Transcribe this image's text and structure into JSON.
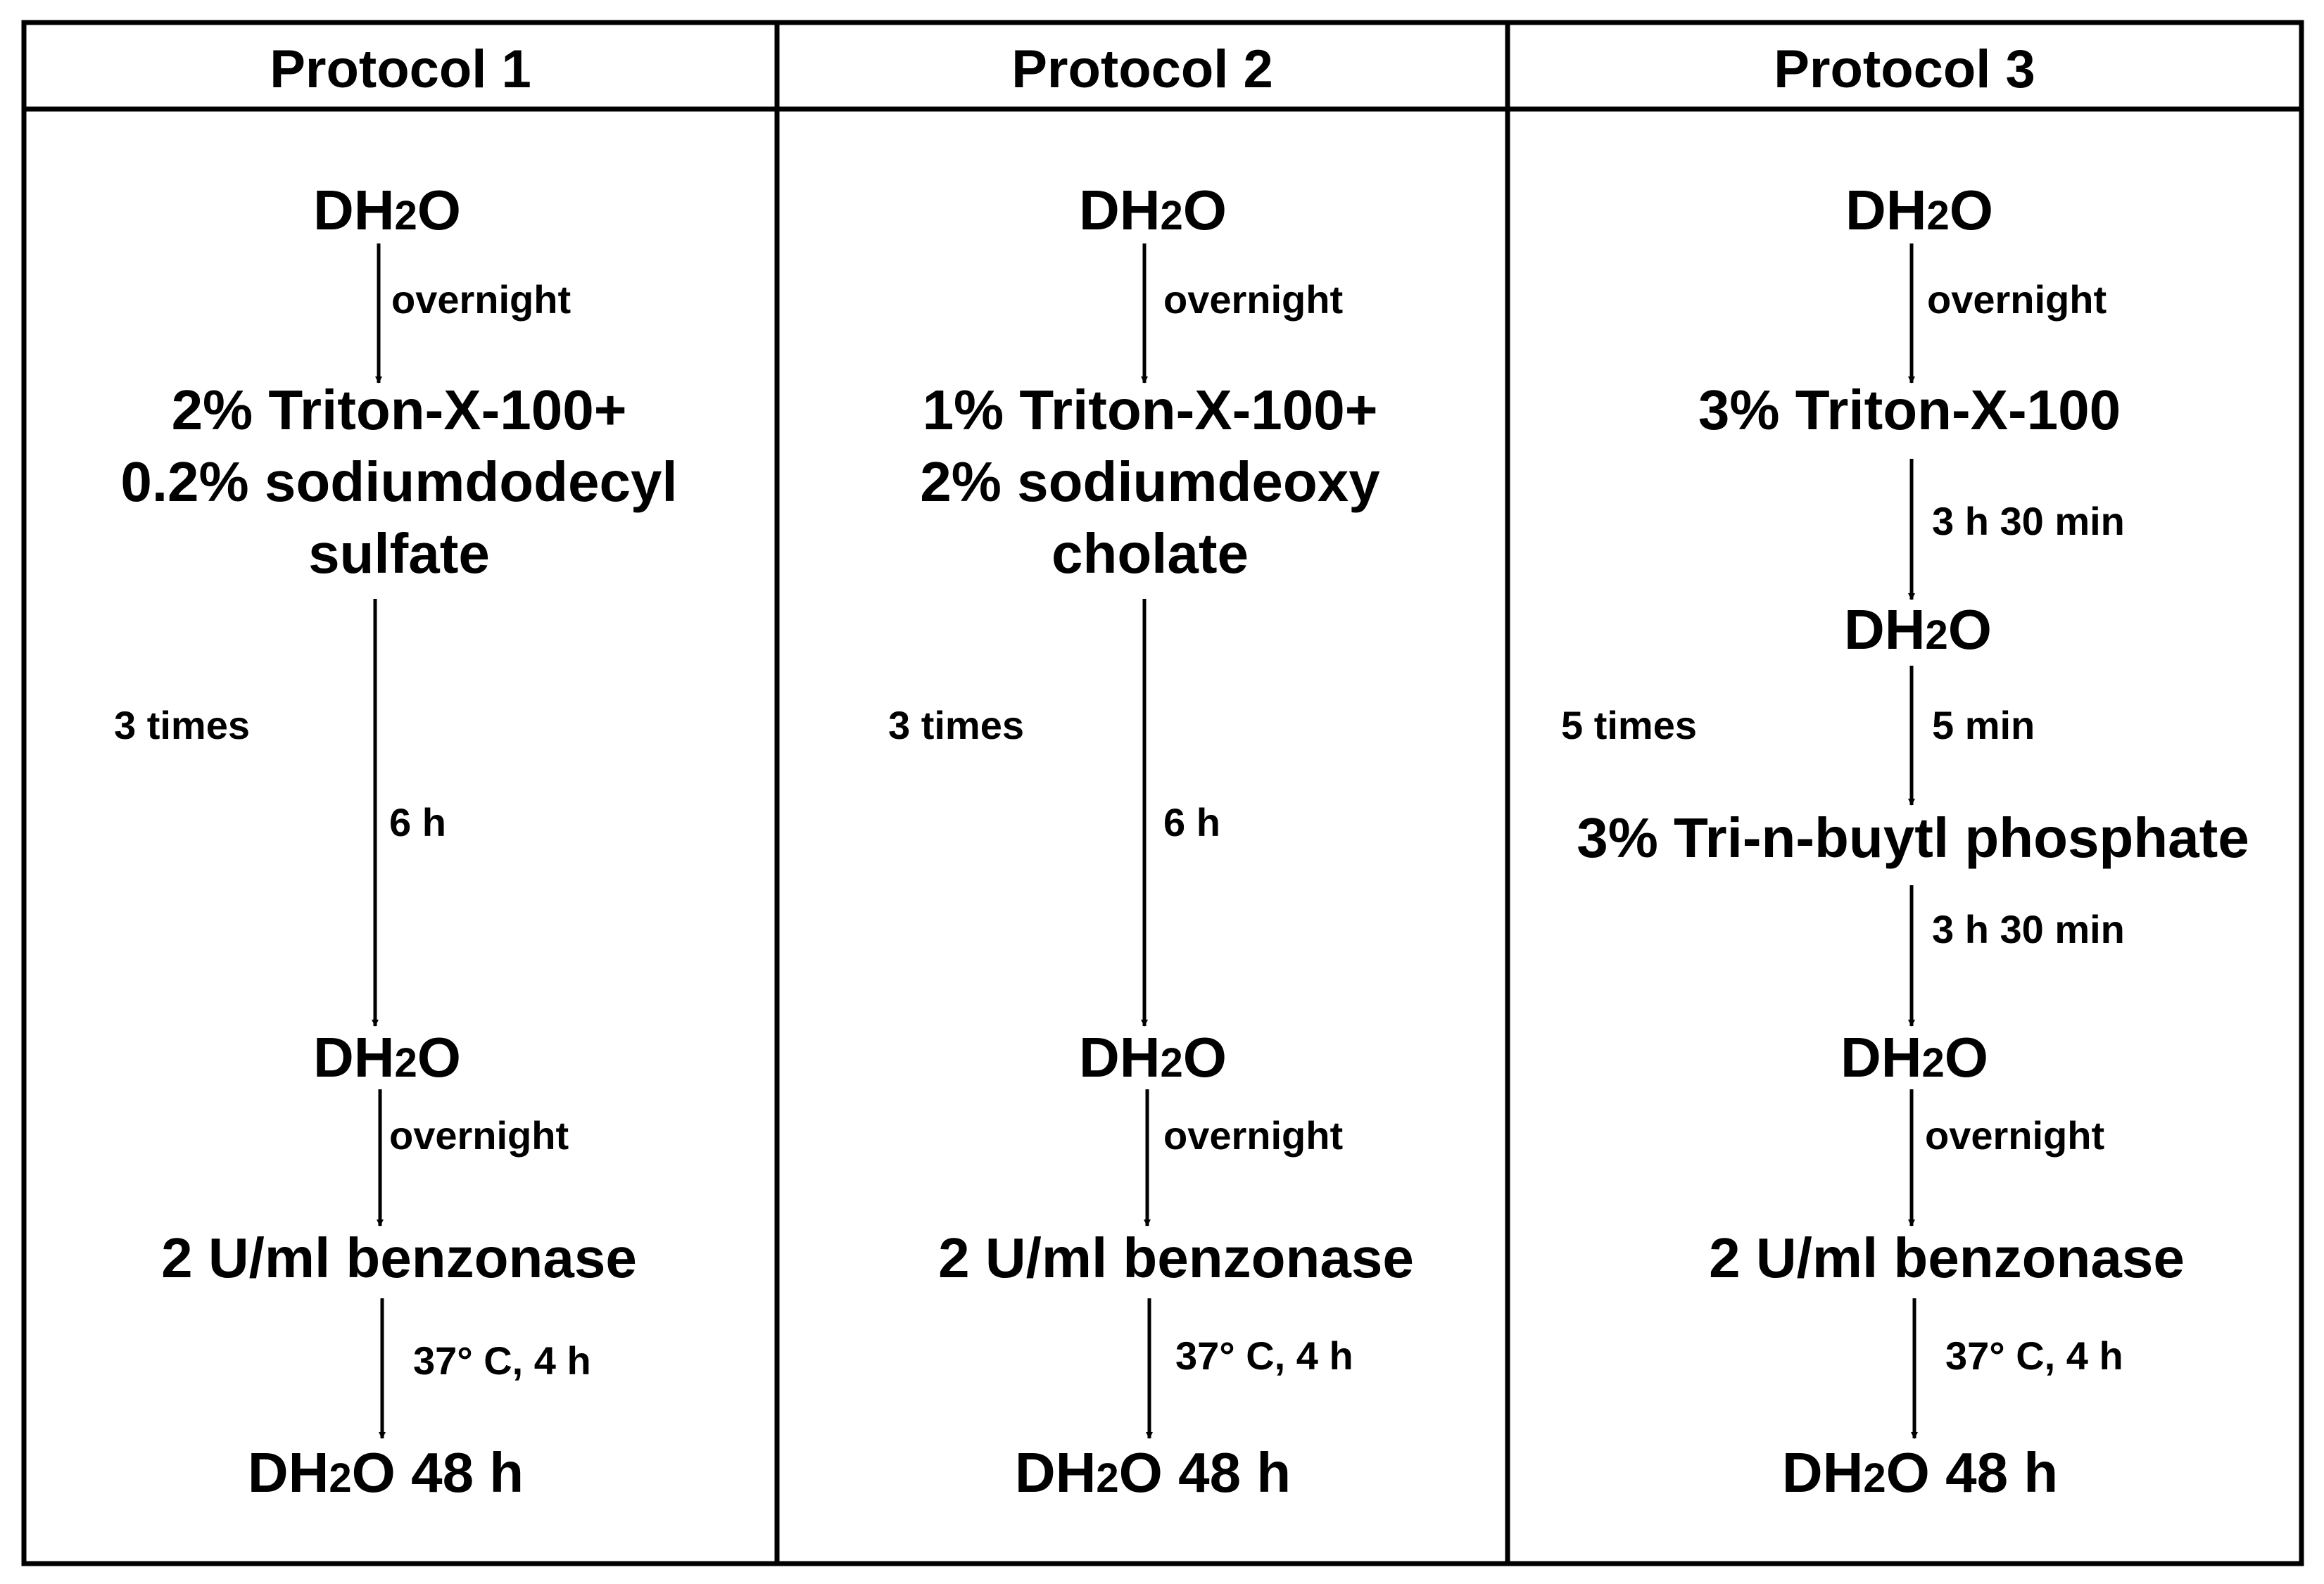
{
  "colors": {
    "line": "#000000",
    "background": "#ffffff"
  },
  "columns": [
    {
      "header": "Protocol 1",
      "steps": [
        {
          "lines": [
            "DH",
            "2",
            "O"
          ],
          "subscript": true
        },
        {
          "label": "overnight"
        },
        {
          "lines": [
            "2% Triton-X-100+",
            "0.2% sodiumdodecyl",
            "sulfate"
          ]
        },
        {
          "label": "6 h",
          "side_label": "3 times"
        },
        {
          "lines": [
            "DH",
            "2",
            "O"
          ],
          "subscript": true
        },
        {
          "label": "overnight"
        },
        {
          "lines": [
            "2 U/ml benzonase"
          ]
        },
        {
          "label": "37° C, 4 h"
        },
        {
          "lines": [
            "DH",
            "2",
            "O 48 h"
          ],
          "subscript": true
        }
      ]
    },
    {
      "header": "Protocol 2",
      "steps": [
        {
          "lines": [
            "DH",
            "2",
            "O"
          ],
          "subscript": true
        },
        {
          "label": "overnight"
        },
        {
          "lines": [
            "1% Triton-X-100+",
            "2% sodiumdeoxy",
            "cholate"
          ]
        },
        {
          "label": "6 h",
          "side_label": "3 times"
        },
        {
          "lines": [
            "DH",
            "2",
            "O"
          ],
          "subscript": true
        },
        {
          "label": "overnight"
        },
        {
          "lines": [
            "2 U/ml benzonase"
          ]
        },
        {
          "label": "37° C, 4 h"
        },
        {
          "lines": [
            "DH",
            "2",
            "O 48 h"
          ],
          "subscript": true
        }
      ]
    },
    {
      "header": "Protocol 3",
      "steps": [
        {
          "lines": [
            "DH",
            "2",
            "O"
          ],
          "subscript": true
        },
        {
          "label": "overnight"
        },
        {
          "lines": [
            "3% Triton-X-100"
          ]
        },
        {
          "label": "3 h 30 min"
        },
        {
          "lines": [
            "DH",
            "2",
            "O"
          ],
          "subscript": true
        },
        {
          "label": "5 min",
          "side_label": "5 times"
        },
        {
          "lines": [
            "3% Tri-n-buytl phosphate"
          ]
        },
        {
          "label": "3 h 30 min"
        },
        {
          "lines": [
            "DH",
            "2",
            "O"
          ],
          "subscript": true
        },
        {
          "label": "overnight"
        },
        {
          "lines": [
            "2 U/ml benzonase"
          ]
        },
        {
          "label": "37° C, 4 h"
        },
        {
          "lines": [
            "DH",
            "2",
            "O 48 h"
          ],
          "subscript": true
        }
      ]
    }
  ]
}
